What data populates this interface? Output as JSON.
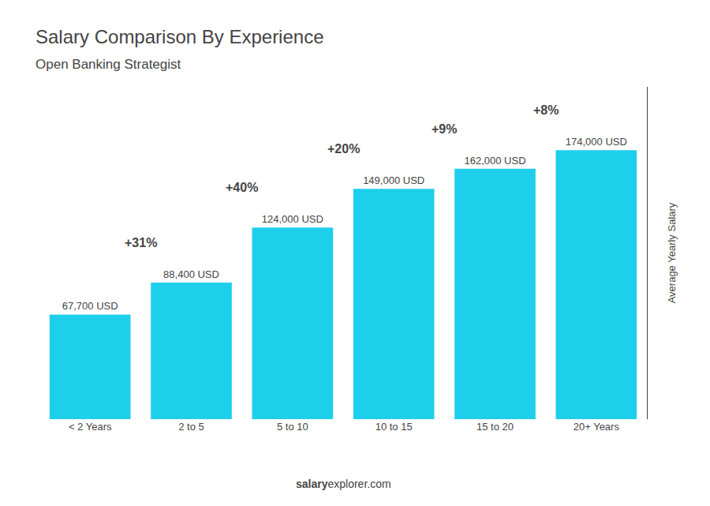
{
  "chart_data": {
    "type": "bar",
    "title": "Salary Comparison By Experience",
    "subtitle": "Open Banking Strategist",
    "ylabel": "Average Yearly Salary",
    "footer": [
      "salary",
      "explorer.com"
    ],
    "categories": [
      "< 2 Years",
      "2 to 5",
      "5 to 10",
      "10 to 15",
      "15 to 20",
      "20+ Years"
    ],
    "values": [
      67700,
      88400,
      124000,
      149000,
      162000,
      174000
    ],
    "value_labels": [
      "67,700 USD",
      "88,400 USD",
      "124,000 USD",
      "149,000 USD",
      "162,000 USD",
      "174,000 USD"
    ],
    "data_labels": true,
    "annotations": [
      "+31%",
      "+40%",
      "+20%",
      "+9%",
      "+8%"
    ],
    "color": "#1ECFEC",
    "ylim": [
      0,
      215000
    ],
    "yticks": [],
    "tick_labels": "x",
    "grid": false
  }
}
